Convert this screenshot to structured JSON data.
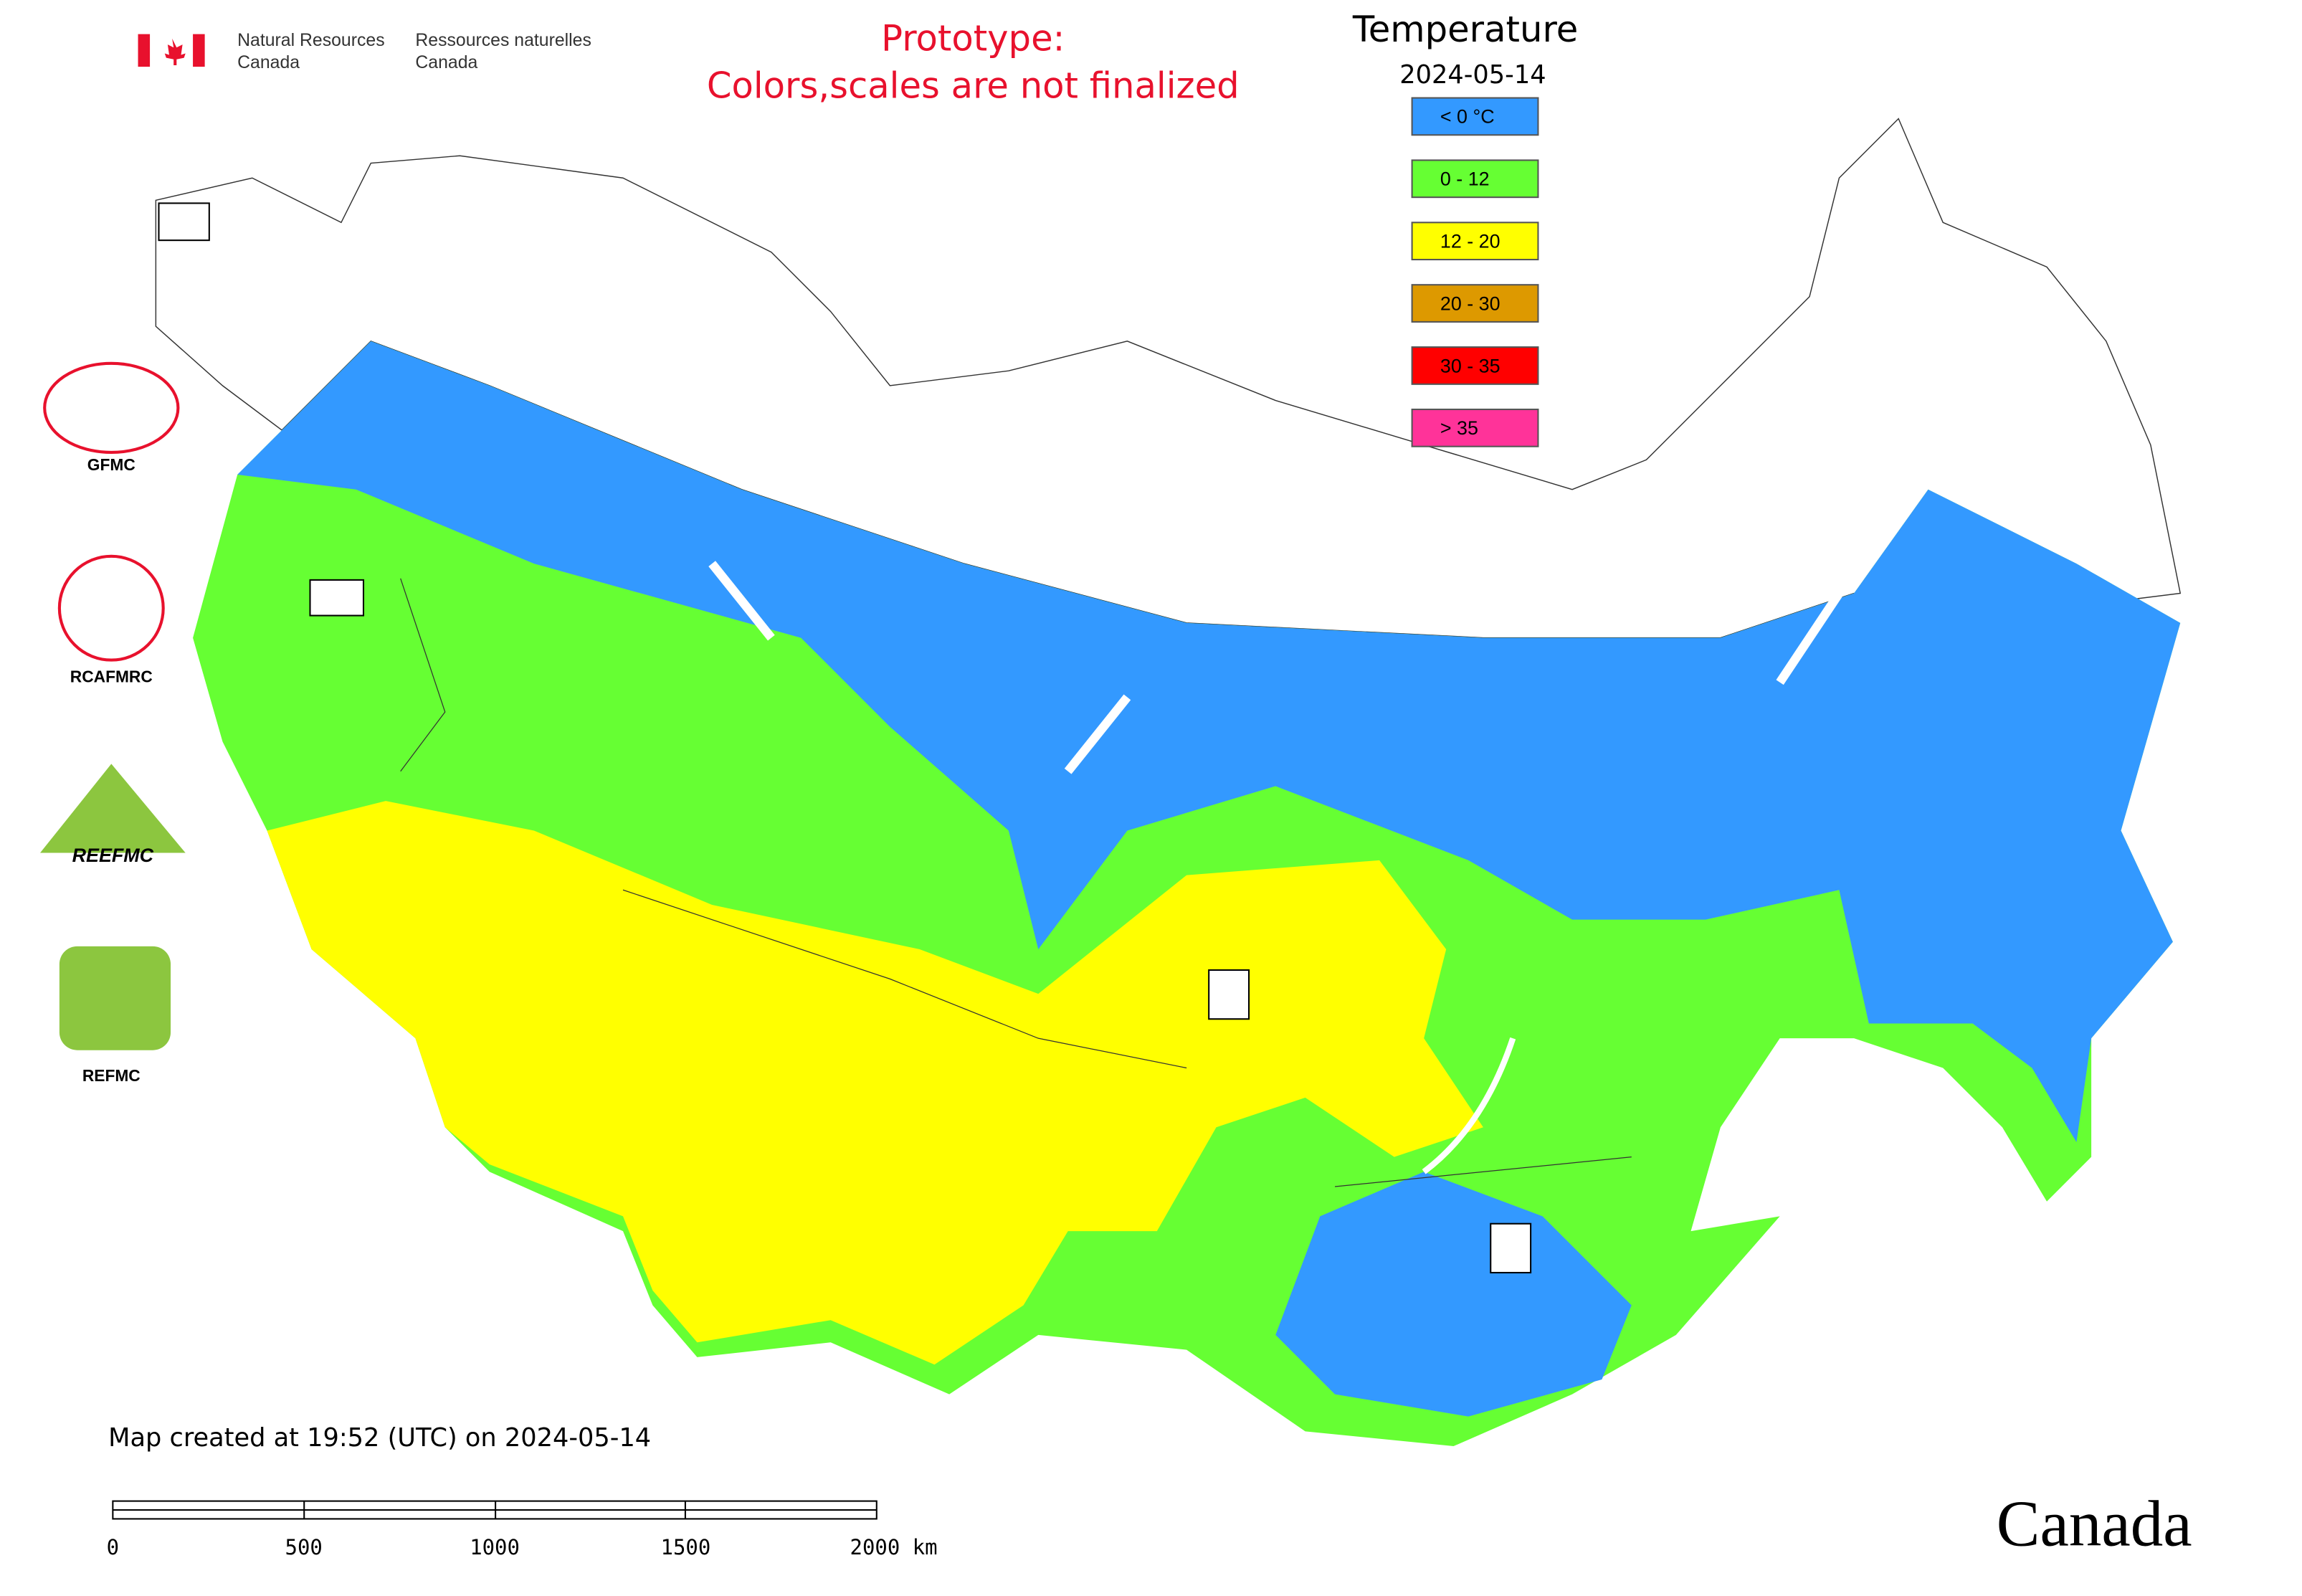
{
  "header": {
    "en": [
      "Natural Resources",
      "Canada"
    ],
    "fr": [
      "Ressources naturelles",
      "Canada"
    ]
  },
  "notice": [
    "Prototype:",
    "Colors,scales are not finalized"
  ],
  "legend": {
    "title": "Temperature",
    "date": "2024-05-14",
    "items": [
      {
        "label": "< 0 °C",
        "color": "#3399ff"
      },
      {
        "label": "0 - 12",
        "color": "#66ff33"
      },
      {
        "label": "12 - 20",
        "color": "#ffff00"
      },
      {
        "label": "20 - 30",
        "color": "#dd9900"
      },
      {
        "label": "30 - 35",
        "color": "#ff0000"
      },
      {
        "label": "> 35",
        "color": "#ff3399"
      }
    ]
  },
  "logos": [
    "GFMC",
    "RCAFMRC",
    "REEFMC",
    "REFMC"
  ],
  "footer": {
    "created": "Map created at 19:52 (UTC) on 2024-05-14",
    "scale": [
      "0",
      "500",
      "1000",
      "1500",
      "2000 km"
    ],
    "wordmark": "Canada"
  }
}
